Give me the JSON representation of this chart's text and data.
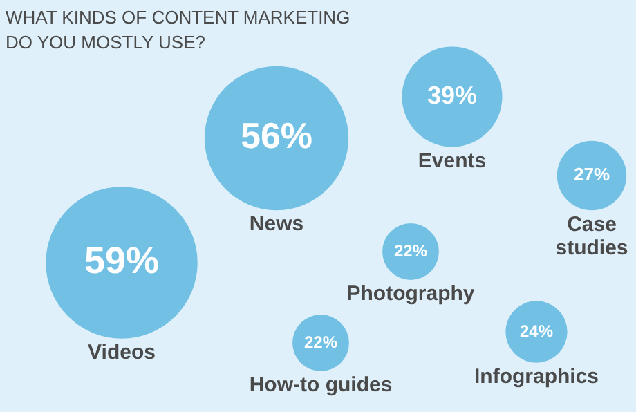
{
  "chart_data": {
    "type": "other",
    "title": "WHAT KINDS OF CONTENT MARKETING DO YOU MOSTLY USE?",
    "categories": [
      "Videos",
      "News",
      "Events",
      "Case\nstudies",
      "Photography",
      "How-to guides",
      "Infographics"
    ],
    "values": [
      59,
      56,
      39,
      27,
      22,
      22,
      24
    ],
    "value_labels": [
      "59%",
      "56%",
      "39%",
      "27%",
      "22%",
      "22%",
      "24%"
    ],
    "color": "#72c1e4"
  }
}
